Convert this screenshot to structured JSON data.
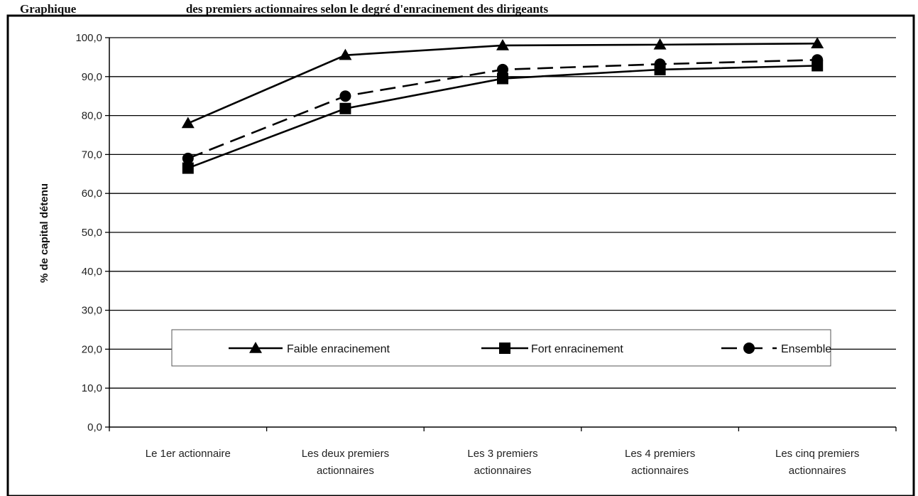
{
  "caption": {
    "bold": "Graphique",
    "rest": "des premiers actionnaires selon le degré d'enracinement des dirigeants"
  },
  "chart_data": {
    "type": "line",
    "title": "",
    "xlabel": "",
    "ylabel": "% de capital détenu",
    "ylim": [
      0,
      100
    ],
    "yticks": [
      "0,0",
      "10,0",
      "20,0",
      "30,0",
      "40,0",
      "50,0",
      "60,0",
      "70,0",
      "80,0",
      "90,0",
      "100,0"
    ],
    "grid": true,
    "legend_position": "bottom-center",
    "categories": [
      [
        "Le 1er actionnaire"
      ],
      [
        "Les deux premiers",
        "actionnaires"
      ],
      [
        "Les 3 premiers",
        "actionnaires"
      ],
      [
        "Les 4 premiers",
        "actionnaires"
      ],
      [
        "Les cinq premiers",
        "actionnaires"
      ]
    ],
    "series": [
      {
        "name": "Faible enracinement",
        "marker": "triangle",
        "dash": "solid",
        "values": [
          78.0,
          95.5,
          98.0,
          98.2,
          98.5
        ]
      },
      {
        "name": "Fort enracinement",
        "marker": "square",
        "dash": "solid",
        "values": [
          66.5,
          81.8,
          89.5,
          91.8,
          92.8
        ]
      },
      {
        "name": "Ensemble",
        "marker": "circle",
        "dash": "dashed",
        "values": [
          69.0,
          85.0,
          91.8,
          93.2,
          94.3
        ]
      }
    ]
  }
}
